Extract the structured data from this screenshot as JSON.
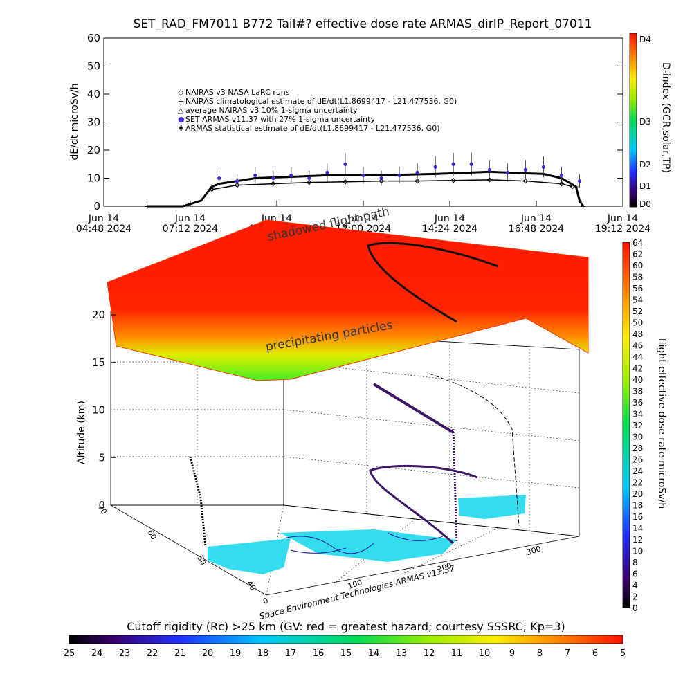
{
  "colors": {
    "nairas_marker": "#000000",
    "set_armas_marker": "#3b2bd0",
    "flight_path": "#3d1466",
    "ground_footprint": "#33ddee",
    "coastlines": "#1a1aa0"
  },
  "chart_data": [
    {
      "type": "line",
      "title": "SET_RAD_FM7011  B772 Tail#? effective dose rate ARMAS_dirIP_Report_07011",
      "ylabel": "dE/dt microSv/h",
      "ylim": [
        0,
        60
      ],
      "y_ticks": [
        "0",
        "10",
        "20",
        "30",
        "40",
        "50",
        "60"
      ],
      "x_ticks": [
        {
          "date": "Jun 14",
          "time": "04:48 2024"
        },
        {
          "date": "Jun 14",
          "time": "07:12 2024"
        },
        {
          "date": "Jun 14",
          "time": "09:36 2024"
        },
        {
          "date": "Jun 14",
          "time": "12:00 2024"
        },
        {
          "date": "Jun 14",
          "time": "14:24 2024"
        },
        {
          "date": "Jun 14",
          "time": "16:48 2024"
        },
        {
          "date": "Jun 14",
          "time": "19:12 2024"
        }
      ],
      "legend": [
        {
          "symbol": "◇",
          "label": "NAIRAS v3 NASA LaRC runs"
        },
        {
          "symbol": "+",
          "label": "NAIRAS climatological estimate of dE/dt(L1.8699417 - L21.477536, G0)"
        },
        {
          "symbol": "△",
          "label": "average NAIRAS v3 10% 1-sigma uncertainty"
        },
        {
          "symbol": "●",
          "label": "SET ARMAS v11.37 with 27% 1-sigma uncertainty"
        },
        {
          "symbol": "✱",
          "label": "ARMAS statistical estimate of dE/dt(L1.8699417 - L21.477536, G0)"
        }
      ],
      "series": [
        {
          "name": "NAIRAS climatological estimate",
          "x": [
            "06:00",
            "07:00",
            "07:30",
            "07:48",
            "08:00",
            "08:30",
            "09:00",
            "10:00",
            "11:00",
            "12:00",
            "13:00",
            "14:00",
            "15:00",
            "15:30",
            "16:00",
            "17:00",
            "17:30",
            "17:54",
            "18:00",
            "18:06"
          ],
          "values": [
            0,
            0,
            2,
            7,
            8,
            9,
            10,
            10.5,
            11,
            11,
            11.2,
            11.5,
            12,
            12.3,
            12,
            11.5,
            10,
            7,
            2,
            0
          ]
        },
        {
          "name": "NAIRAS v3 NASA LaRC runs",
          "x": [
            "07:48",
            "08:30",
            "09:30",
            "10:30",
            "11:30",
            "12:30",
            "13:30",
            "14:30",
            "15:30",
            "16:30",
            "17:30",
            "17:48"
          ],
          "values": [
            6,
            7.5,
            8,
            8.5,
            8.7,
            9,
            9,
            9.2,
            9.4,
            9,
            8,
            7
          ]
        },
        {
          "name": "SET ARMAS v11.37",
          "x": [
            "08:00",
            "08:30",
            "09:00",
            "09:30",
            "10:00",
            "10:30",
            "11:00",
            "11:30",
            "12:00",
            "12:30",
            "13:00",
            "13:30",
            "14:00",
            "14:30",
            "15:00",
            "15:30",
            "16:00",
            "16:30",
            "17:00",
            "17:30",
            "18:00"
          ],
          "values": [
            10,
            9,
            11,
            10,
            11,
            10,
            12,
            15,
            11,
            10,
            11,
            12,
            14,
            15,
            15,
            13,
            12,
            13,
            14,
            11,
            9
          ]
        }
      ],
      "d_index_colorbar": {
        "label": "D-index (GCR,solar,TP)",
        "ticks": [
          "D0",
          "D1",
          "D2",
          "D3",
          "D4"
        ]
      }
    },
    {
      "type": "scatter",
      "dimension": "3d",
      "zlabel": "Altitude (km)",
      "z_ticks": [
        "0",
        "5",
        "10",
        "15",
        "20"
      ],
      "x_ticks": [
        "0",
        "100",
        "200",
        "300"
      ],
      "y_ticks": [
        "40",
        "50",
        "60",
        "70"
      ],
      "annotations": {
        "top_layer": "precipitating particles",
        "arc": "shadowed flight path"
      },
      "flight_path_points_km": [
        {
          "lon": 10,
          "lat": 65,
          "alt": 5
        },
        {
          "lon": 15,
          "lat": 60,
          "alt": 2
        },
        {
          "lon": 120,
          "lat": 68,
          "alt": 3
        },
        {
          "lon": 190,
          "lat": 62,
          "alt": 3
        },
        {
          "lon": 240,
          "lat": 45,
          "alt": 0
        }
      ],
      "credit": "Space Environment Technologies ARMAS v11.37",
      "colorbar": {
        "label": "flight effective dose rate microSv/h",
        "range": [
          0,
          64
        ],
        "ticks": [
          "0",
          "2",
          "4",
          "6",
          "8",
          "10",
          "12",
          "14",
          "16",
          "18",
          "20",
          "22",
          "24",
          "26",
          "28",
          "30",
          "32",
          "34",
          "36",
          "38",
          "40",
          "42",
          "44",
          "46",
          "48",
          "50",
          "52",
          "54",
          "56",
          "58",
          "60",
          "62",
          "64"
        ]
      }
    },
    {
      "type": "heatmap",
      "title": "Cutoff rigidity (Rc) >25 km (GV: red = greatest hazard; courtesy SSSRC; Kp=3)",
      "ticks": [
        "25",
        "24",
        "23",
        "22",
        "21",
        "20",
        "19",
        "18",
        "17",
        "16",
        "15",
        "14",
        "13",
        "12",
        "11",
        "10",
        "9",
        "8",
        "7",
        "6",
        "5"
      ]
    }
  ]
}
